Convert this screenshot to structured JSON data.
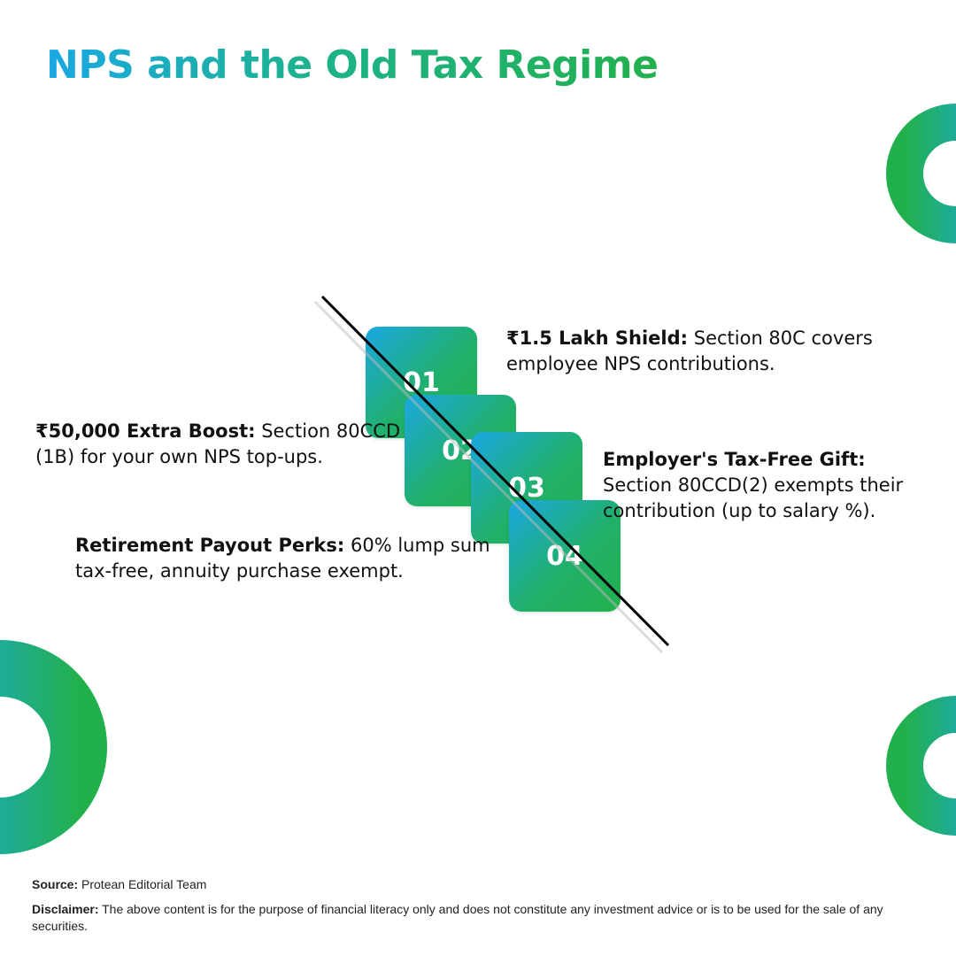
{
  "title": "NPS and the Old Tax Regime",
  "steps": [
    {
      "number": "01",
      "heading": "₹1.5 Lakh Shield:",
      "text": " Section 80C covers employee NPS contributions."
    },
    {
      "number": "02",
      "heading": "₹50,000 Extra Boost:",
      "text": " Section 80CCD (1B) for your own NPS top-ups."
    },
    {
      "number": "03",
      "heading": "Employer's Tax-Free Gift:",
      "text": " Section 80CCD(2) exempts their contribution (up to salary %)."
    },
    {
      "number": "04",
      "heading": "Retirement Payout Perks:",
      "text": " 60% lump sum tax-free, annuity purchase exempt."
    }
  ],
  "source": {
    "label": "Source:",
    "text": " Protean Editorial Team"
  },
  "disclaimer": {
    "label": "Disclaimer:",
    "text": " The above content is for the purpose of financial literacy only and does not constitute any investment advice or is to be used for the sale of any securities."
  },
  "colors": {
    "blue": "#1ba7e3",
    "green": "#22b04d"
  }
}
